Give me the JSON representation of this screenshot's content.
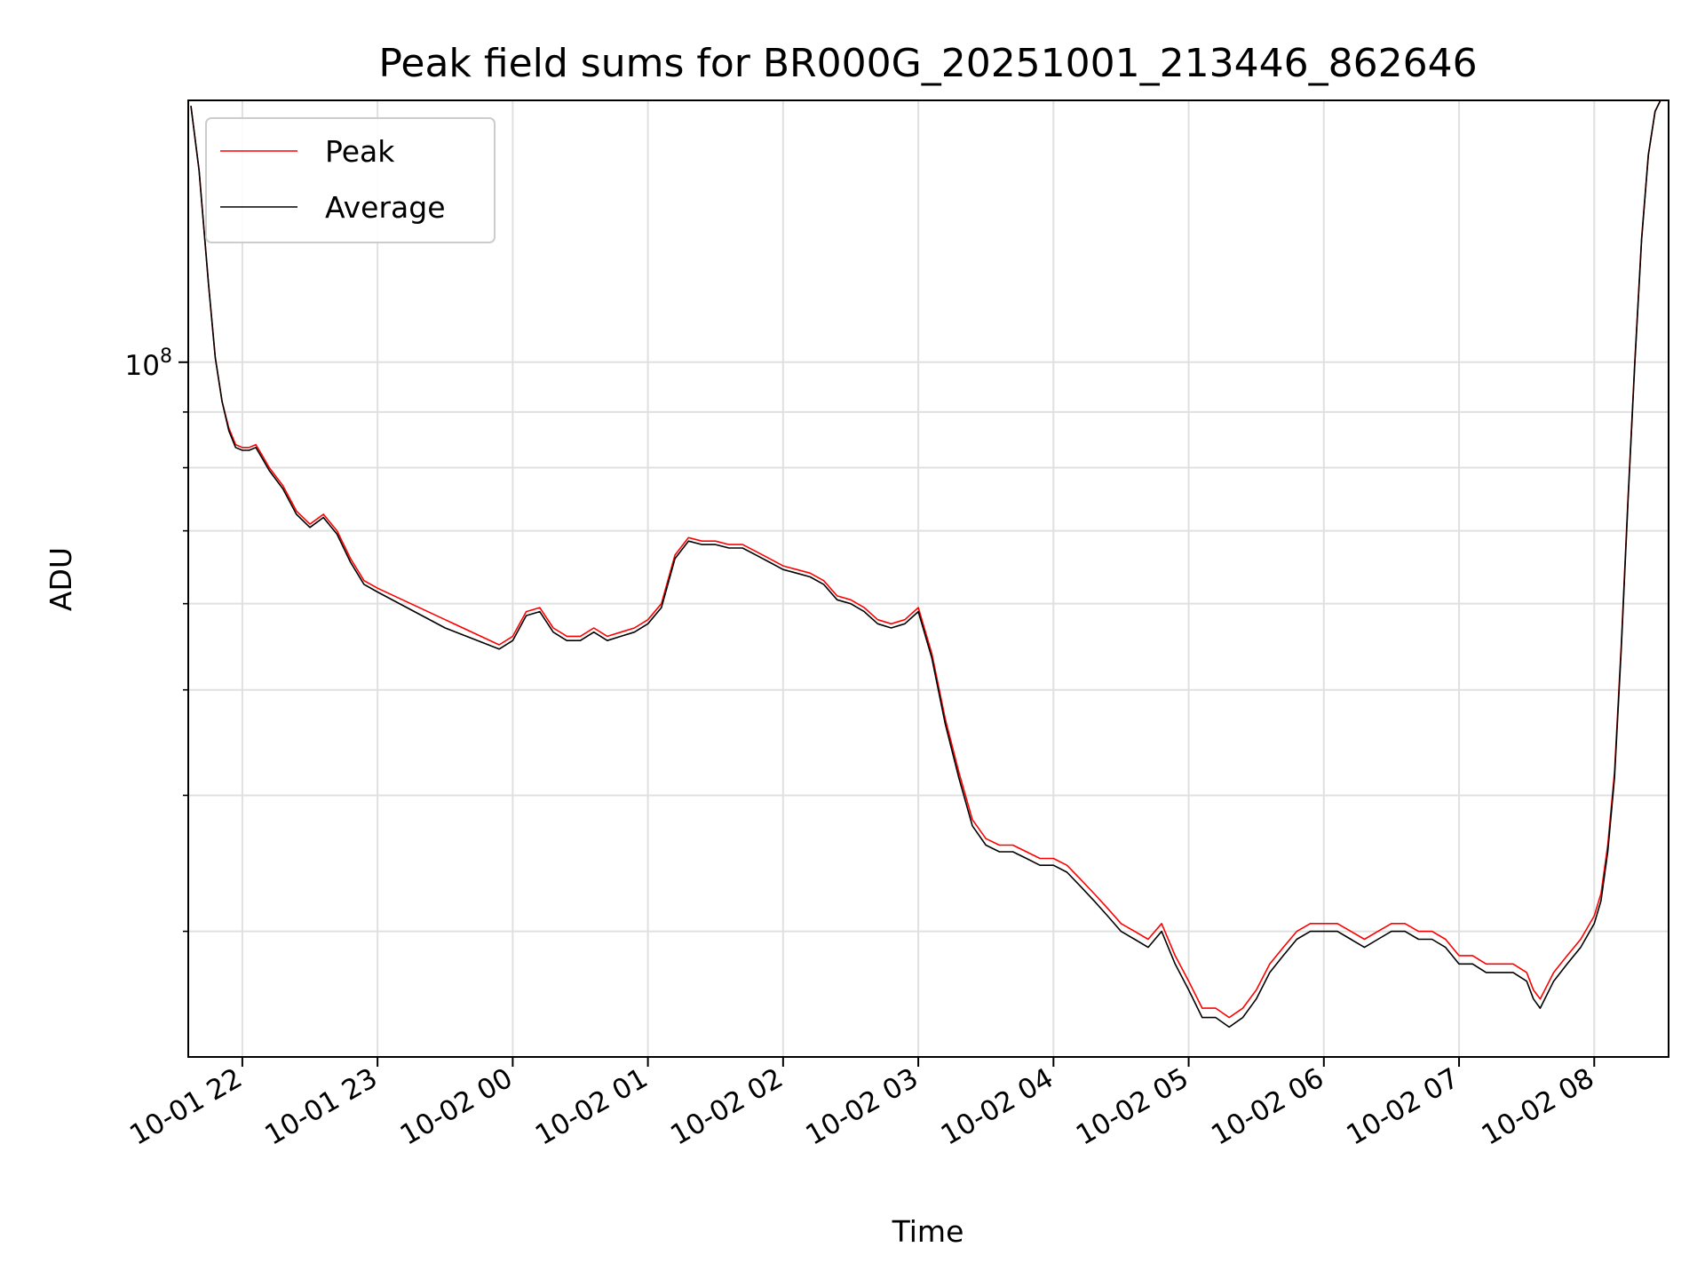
{
  "chart_data": {
    "type": "line",
    "title": "Peak field sums for BR000G_20251001_213446_862646",
    "xlabel": "Time",
    "ylabel": "ADU",
    "yscale": "log",
    "grid": true,
    "legend_position": "top-left",
    "x_unit": "hours since 10-01 21:00",
    "xlim": [
      21.6,
      32.55
    ],
    "ylim": [
      23000000,
      174000000
    ],
    "x_ticks": [
      {
        "value": 22,
        "label": "10-01 22"
      },
      {
        "value": 23,
        "label": "10-01 23"
      },
      {
        "value": 24,
        "label": "10-02 00"
      },
      {
        "value": 25,
        "label": "10-02 01"
      },
      {
        "value": 26,
        "label": "10-02 02"
      },
      {
        "value": 27,
        "label": "10-02 03"
      },
      {
        "value": 28,
        "label": "10-02 04"
      },
      {
        "value": 29,
        "label": "10-02 05"
      },
      {
        "value": 30,
        "label": "10-02 06"
      },
      {
        "value": 31,
        "label": "10-02 07"
      },
      {
        "value": 32,
        "label": "10-02 08"
      }
    ],
    "y_major_ticks": [
      {
        "value": 100000000,
        "base": "10",
        "exp": "8"
      }
    ],
    "y_minor_ticks": [
      30000000,
      40000000,
      50000000,
      60000000,
      70000000,
      80000000,
      90000000
    ],
    "series": [
      {
        "name": "Peak",
        "color": "#ff0000",
        "x": [
          21.62,
          21.68,
          21.75,
          21.8,
          21.85,
          21.9,
          21.95,
          22.0,
          22.05,
          22.1,
          22.15,
          22.2,
          22.3,
          22.4,
          22.5,
          22.6,
          22.7,
          22.8,
          22.9,
          23.0,
          23.5,
          23.9,
          24.0,
          24.1,
          24.2,
          24.3,
          24.4,
          24.5,
          24.6,
          24.7,
          24.8,
          24.9,
          25.0,
          25.1,
          25.2,
          25.3,
          25.4,
          25.5,
          25.6,
          25.7,
          25.8,
          25.9,
          26.0,
          26.1,
          26.2,
          26.3,
          26.4,
          26.5,
          26.6,
          26.7,
          26.8,
          26.9,
          27.0,
          27.1,
          27.2,
          27.3,
          27.4,
          27.5,
          27.6,
          27.7,
          27.8,
          27.9,
          28.0,
          28.1,
          28.2,
          28.3,
          28.4,
          28.5,
          28.6,
          28.7,
          28.8,
          28.9,
          29.0,
          29.1,
          29.2,
          29.3,
          29.4,
          29.5,
          29.6,
          29.7,
          29.8,
          29.9,
          30.0,
          30.1,
          30.2,
          30.3,
          30.4,
          30.5,
          30.6,
          30.7,
          30.8,
          30.9,
          31.0,
          31.1,
          31.2,
          31.3,
          31.4,
          31.5,
          31.55,
          31.6,
          31.7,
          31.8,
          31.9,
          32.0,
          32.05,
          32.1,
          32.15,
          32.2,
          32.25,
          32.3,
          32.35,
          32.4,
          32.45,
          32.5
        ],
        "values": [
          172000000,
          150000000,
          118000000,
          101000000,
          92000000,
          87000000,
          84000000,
          83500000,
          83500000,
          84000000,
          82000000,
          80000000,
          77000000,
          73000000,
          71000000,
          72500000,
          70000000,
          66000000,
          63000000,
          62000000,
          58000000,
          55000000,
          56000000,
          59000000,
          59500000,
          57000000,
          56000000,
          56000000,
          57000000,
          56000000,
          56500000,
          57000000,
          58000000,
          60000000,
          66500000,
          69000000,
          68500000,
          68500000,
          68000000,
          68000000,
          67000000,
          66000000,
          65000000,
          64500000,
          64000000,
          63000000,
          61000000,
          60500000,
          59500000,
          58000000,
          57500000,
          58000000,
          59500000,
          54000000,
          47000000,
          42000000,
          38000000,
          36500000,
          36000000,
          36000000,
          35500000,
          35000000,
          35000000,
          34500000,
          33500000,
          32500000,
          31500000,
          30500000,
          30000000,
          29500000,
          30500000,
          28500000,
          27000000,
          25500000,
          25500000,
          25000000,
          25500000,
          26500000,
          28000000,
          29000000,
          30000000,
          30500000,
          30500000,
          30500000,
          30000000,
          29500000,
          30000000,
          30500000,
          30500000,
          30000000,
          30000000,
          29500000,
          28500000,
          28500000,
          28000000,
          28000000,
          28000000,
          27500000,
          26500000,
          26000000,
          27500000,
          28500000,
          29500000,
          31000000,
          32500000,
          36000000,
          42000000,
          55000000,
          75000000,
          100000000,
          130000000,
          155000000,
          170000000,
          175000000
        ]
      },
      {
        "name": "Average",
        "color": "#000000",
        "x": [
          21.62,
          21.68,
          21.75,
          21.8,
          21.85,
          21.9,
          21.95,
          22.0,
          22.05,
          22.1,
          22.15,
          22.2,
          22.3,
          22.4,
          22.5,
          22.6,
          22.7,
          22.8,
          22.9,
          23.0,
          23.5,
          23.9,
          24.0,
          24.1,
          24.2,
          24.3,
          24.4,
          24.5,
          24.6,
          24.7,
          24.8,
          24.9,
          25.0,
          25.1,
          25.2,
          25.3,
          25.4,
          25.5,
          25.6,
          25.7,
          25.8,
          25.9,
          26.0,
          26.1,
          26.2,
          26.3,
          26.4,
          26.5,
          26.6,
          26.7,
          26.8,
          26.9,
          27.0,
          27.1,
          27.2,
          27.3,
          27.4,
          27.5,
          27.6,
          27.7,
          27.8,
          27.9,
          28.0,
          28.1,
          28.2,
          28.3,
          28.4,
          28.5,
          28.6,
          28.7,
          28.8,
          28.9,
          29.0,
          29.1,
          29.2,
          29.3,
          29.4,
          29.5,
          29.6,
          29.7,
          29.8,
          29.9,
          30.0,
          30.1,
          30.2,
          30.3,
          30.4,
          30.5,
          30.6,
          30.7,
          30.8,
          30.9,
          31.0,
          31.1,
          31.2,
          31.3,
          31.4,
          31.5,
          31.55,
          31.6,
          31.7,
          31.8,
          31.9,
          32.0,
          32.05,
          32.1,
          32.15,
          32.2,
          32.25,
          32.3,
          32.35,
          32.4,
          32.45,
          32.5
        ],
        "values": [
          172000000,
          150000000,
          118000000,
          101000000,
          92000000,
          86500000,
          83500000,
          83000000,
          83000000,
          83500000,
          81500000,
          79500000,
          76500000,
          72500000,
          70500000,
          72000000,
          69500000,
          65500000,
          62500000,
          61500000,
          57000000,
          54500000,
          55500000,
          58500000,
          59000000,
          56500000,
          55500000,
          55500000,
          56500000,
          55500000,
          56000000,
          56500000,
          57500000,
          59500000,
          66000000,
          68500000,
          68000000,
          68000000,
          67500000,
          67500000,
          66500000,
          65500000,
          64500000,
          64000000,
          63500000,
          62500000,
          60500000,
          60000000,
          59000000,
          57500000,
          57000000,
          57500000,
          59000000,
          53500000,
          46500000,
          41500000,
          37500000,
          36000000,
          35500000,
          35500000,
          35000000,
          34500000,
          34500000,
          34000000,
          33000000,
          32000000,
          31000000,
          30000000,
          29500000,
          29000000,
          30000000,
          28000000,
          26500000,
          25000000,
          25000000,
          24500000,
          25000000,
          26000000,
          27500000,
          28500000,
          29500000,
          30000000,
          30000000,
          30000000,
          29500000,
          29000000,
          29500000,
          30000000,
          30000000,
          29500000,
          29500000,
          29000000,
          28000000,
          28000000,
          27500000,
          27500000,
          27500000,
          27000000,
          26000000,
          25500000,
          27000000,
          28000000,
          29000000,
          30500000,
          32000000,
          35500000,
          41500000,
          54500000,
          74500000,
          99500000,
          129500000,
          155000000,
          170000000,
          175000000
        ]
      }
    ]
  }
}
